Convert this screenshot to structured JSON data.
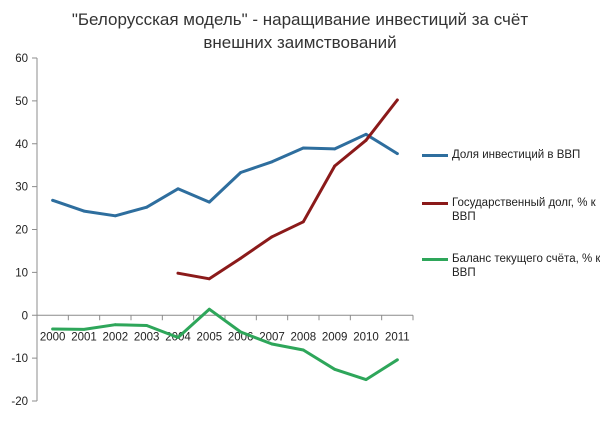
{
  "chart_data": {
    "type": "line",
    "title_lines": [
      "\"Белорусская модель\" - наращивание инвестиций за счёт",
      "внешних заимствований"
    ],
    "x": [
      "2000",
      "2001",
      "2002",
      "2003",
      "2004",
      "2005",
      "2006",
      "2007",
      "2008",
      "2009",
      "2010",
      "2011"
    ],
    "ylim": [
      -20,
      60
    ],
    "yticks": [
      -20,
      -10,
      0,
      10,
      20,
      30,
      40,
      50,
      60
    ],
    "grid": false,
    "legend_position": "right",
    "series": [
      {
        "name": "Доля инвестиций в ВВП",
        "color": "#2E6E9E",
        "values": [
          26.8,
          24.3,
          23.2,
          25.2,
          29.5,
          26.4,
          33.3,
          35.8,
          39.0,
          38.8,
          42.2,
          37.7
        ]
      },
      {
        "name": "Государственный долг, % к ВВП",
        "color": "#8B1A1A",
        "values": [
          null,
          null,
          null,
          null,
          9.8,
          8.5,
          13.3,
          18.3,
          21.8,
          34.8,
          40.8,
          50.2
        ]
      },
      {
        "name": "Баланс текущего счёта, % к ВВП",
        "color": "#2EA65A",
        "values": [
          -3.2,
          -3.3,
          -2.2,
          -2.4,
          -5.2,
          1.4,
          -3.9,
          -6.7,
          -8.1,
          -12.6,
          -15.0,
          -10.4
        ]
      }
    ]
  }
}
